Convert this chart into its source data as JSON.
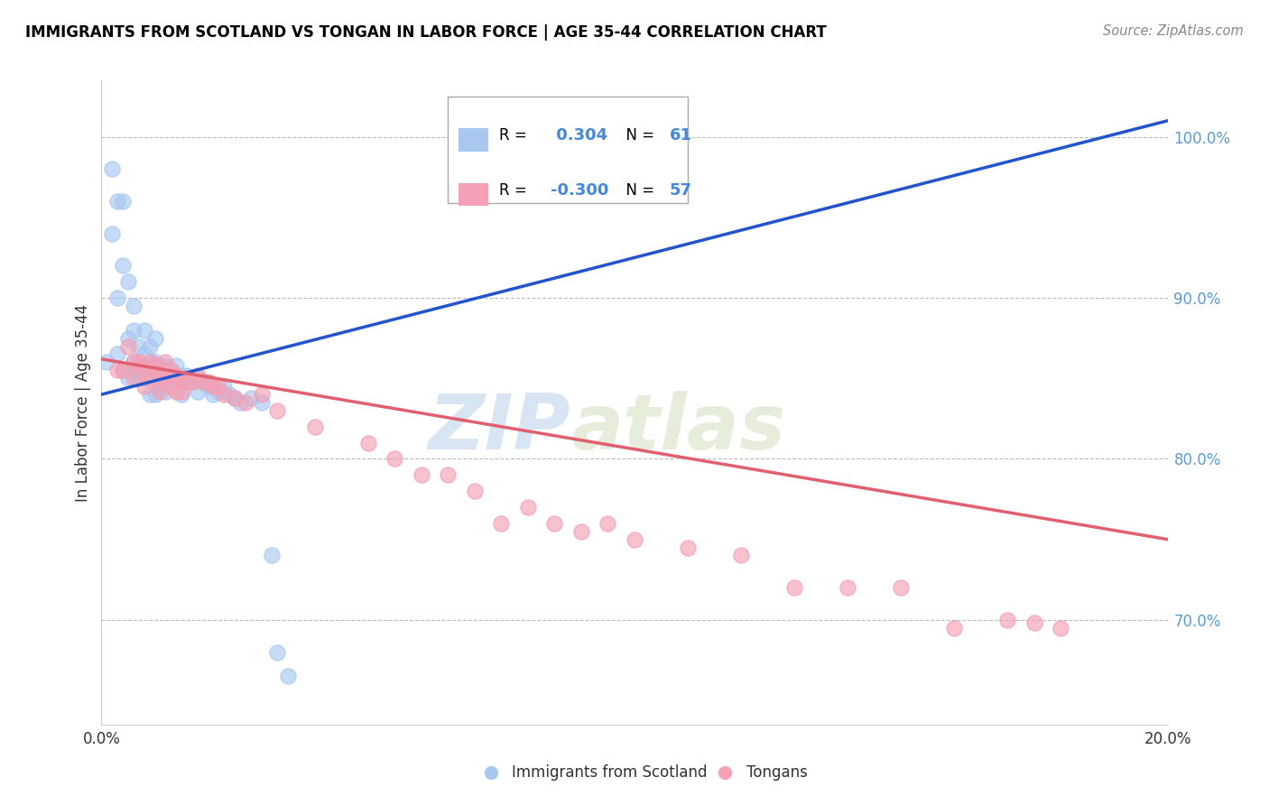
{
  "title": "IMMIGRANTS FROM SCOTLAND VS TONGAN IN LABOR FORCE | AGE 35-44 CORRELATION CHART",
  "source": "Source: ZipAtlas.com",
  "ylabel": "In Labor Force | Age 35-44",
  "right_ytick_labels": [
    "100.0%",
    "90.0%",
    "80.0%",
    "70.0%"
  ],
  "right_ytick_values": [
    1.0,
    0.9,
    0.8,
    0.7
  ],
  "xlim": [
    0.0,
    0.2
  ],
  "ylim": [
    0.635,
    1.035
  ],
  "scotland_color": "#A8C8F0",
  "tongan_color": "#F4A0B5",
  "scotland_line_color": "#2255CC",
  "tongan_line_color": "#E06070",
  "watermark_zip": "ZIP",
  "watermark_atlas": "atlas",
  "scotland_points_x": [
    0.001,
    0.002,
    0.002,
    0.003,
    0.003,
    0.003,
    0.004,
    0.004,
    0.004,
    0.005,
    0.005,
    0.005,
    0.006,
    0.006,
    0.006,
    0.006,
    0.007,
    0.007,
    0.007,
    0.008,
    0.008,
    0.008,
    0.009,
    0.009,
    0.009,
    0.009,
    0.01,
    0.01,
    0.01,
    0.01,
    0.01,
    0.011,
    0.011,
    0.011,
    0.012,
    0.012,
    0.012,
    0.013,
    0.013,
    0.014,
    0.014,
    0.015,
    0.015,
    0.016,
    0.016,
    0.017,
    0.018,
    0.018,
    0.019,
    0.02,
    0.021,
    0.022,
    0.023,
    0.024,
    0.025,
    0.026,
    0.028,
    0.03,
    0.032,
    0.033,
    0.035
  ],
  "scotland_points_y": [
    0.86,
    0.94,
    0.98,
    0.96,
    0.9,
    0.865,
    0.92,
    0.96,
    0.855,
    0.91,
    0.875,
    0.85,
    0.88,
    0.86,
    0.895,
    0.855,
    0.87,
    0.855,
    0.85,
    0.88,
    0.865,
    0.85,
    0.87,
    0.86,
    0.855,
    0.84,
    0.875,
    0.86,
    0.858,
    0.855,
    0.84,
    0.858,
    0.85,
    0.845,
    0.858,
    0.855,
    0.842,
    0.855,
    0.85,
    0.858,
    0.848,
    0.852,
    0.84,
    0.852,
    0.848,
    0.848,
    0.85,
    0.842,
    0.848,
    0.845,
    0.84,
    0.842,
    0.845,
    0.84,
    0.838,
    0.835,
    0.838,
    0.835,
    0.74,
    0.68,
    0.665
  ],
  "tongan_points_x": [
    0.003,
    0.004,
    0.005,
    0.006,
    0.006,
    0.007,
    0.007,
    0.008,
    0.008,
    0.009,
    0.009,
    0.01,
    0.01,
    0.011,
    0.011,
    0.011,
    0.012,
    0.012,
    0.013,
    0.013,
    0.014,
    0.014,
    0.015,
    0.015,
    0.016,
    0.017,
    0.018,
    0.019,
    0.02,
    0.021,
    0.022,
    0.023,
    0.025,
    0.027,
    0.03,
    0.033,
    0.04,
    0.05,
    0.055,
    0.06,
    0.065,
    0.07,
    0.075,
    0.08,
    0.085,
    0.09,
    0.095,
    0.1,
    0.11,
    0.12,
    0.13,
    0.14,
    0.15,
    0.16,
    0.17,
    0.175,
    0.18
  ],
  "tongan_points_y": [
    0.855,
    0.855,
    0.87,
    0.86,
    0.85,
    0.86,
    0.858,
    0.855,
    0.845,
    0.86,
    0.85,
    0.855,
    0.858,
    0.855,
    0.848,
    0.842,
    0.86,
    0.85,
    0.855,
    0.845,
    0.852,
    0.842,
    0.85,
    0.842,
    0.848,
    0.848,
    0.852,
    0.848,
    0.848,
    0.845,
    0.845,
    0.84,
    0.838,
    0.835,
    0.84,
    0.83,
    0.82,
    0.81,
    0.8,
    0.79,
    0.79,
    0.78,
    0.76,
    0.77,
    0.76,
    0.755,
    0.76,
    0.75,
    0.745,
    0.74,
    0.72,
    0.72,
    0.72,
    0.695,
    0.7,
    0.698,
    0.695
  ],
  "scotland_trendline_x": [
    0.0,
    0.2
  ],
  "scotland_trendline_y": [
    0.84,
    1.01
  ],
  "tongan_trendline_x": [
    0.0,
    0.2
  ],
  "tongan_trendline_y": [
    0.862,
    0.75
  ]
}
